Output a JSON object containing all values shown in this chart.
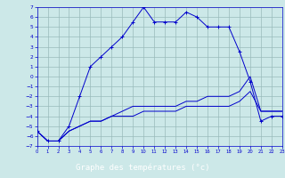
{
  "title": "Graphe des températures (°c)",
  "bg_color": "#cce8e8",
  "plot_bg": "#cce8e8",
  "line_color": "#0000cc",
  "grid_color": "#99bbbb",
  "xlabel_bg": "#0000aa",
  "xlabel_fg": "#ffffff",
  "x_min": 0,
  "x_max": 23,
  "y_min": -7,
  "y_max": 7,
  "curve1_x": [
    0,
    1,
    2,
    3,
    4,
    5,
    6,
    7,
    8,
    9,
    10,
    11,
    12,
    13,
    14,
    15,
    16,
    17,
    18,
    19,
    20,
    21,
    22,
    23
  ],
  "curve1_y": [
    -5.5,
    -6.5,
    -6.5,
    -5.0,
    -2.0,
    1.0,
    2.0,
    3.0,
    4.0,
    5.5,
    7.0,
    5.5,
    5.5,
    5.5,
    6.5,
    6.0,
    5.0,
    5.0,
    5.0,
    2.5,
    -0.5,
    -4.5,
    -4.0,
    -4.0
  ],
  "curve2_x": [
    0,
    1,
    2,
    3,
    4,
    5,
    6,
    7,
    8,
    9,
    10,
    11,
    12,
    13,
    14,
    15,
    16,
    17,
    18,
    19,
    20,
    21,
    22,
    23
  ],
  "curve2_y": [
    -5.5,
    -6.5,
    -6.5,
    -5.5,
    -5.0,
    -4.5,
    -4.5,
    -4.0,
    -4.0,
    -4.0,
    -3.5,
    -3.5,
    -3.5,
    -3.5,
    -3.0,
    -3.0,
    -3.0,
    -3.0,
    -3.0,
    -2.5,
    -1.5,
    -3.5,
    -3.5,
    -3.5
  ],
  "curve3_x": [
    0,
    1,
    2,
    3,
    4,
    5,
    6,
    7,
    8,
    9,
    10,
    11,
    12,
    13,
    14,
    15,
    16,
    17,
    18,
    19,
    20,
    21,
    22,
    23
  ],
  "curve3_y": [
    -5.5,
    -6.5,
    -6.5,
    -5.5,
    -5.0,
    -4.5,
    -4.5,
    -4.0,
    -3.5,
    -3.0,
    -3.0,
    -3.0,
    -3.0,
    -3.0,
    -2.5,
    -2.5,
    -2.0,
    -2.0,
    -2.0,
    -1.5,
    0.0,
    -3.5,
    -3.5,
    -3.5
  ],
  "y_ticks": [
    7,
    6,
    5,
    4,
    3,
    2,
    1,
    0,
    -1,
    -2,
    -3,
    -4,
    -5,
    -6,
    -7
  ],
  "x_ticks": [
    0,
    1,
    2,
    3,
    4,
    5,
    6,
    7,
    8,
    9,
    10,
    11,
    12,
    13,
    14,
    15,
    16,
    17,
    18,
    19,
    20,
    21,
    22,
    23
  ],
  "figsize": [
    3.2,
    2.0
  ],
  "dpi": 100
}
